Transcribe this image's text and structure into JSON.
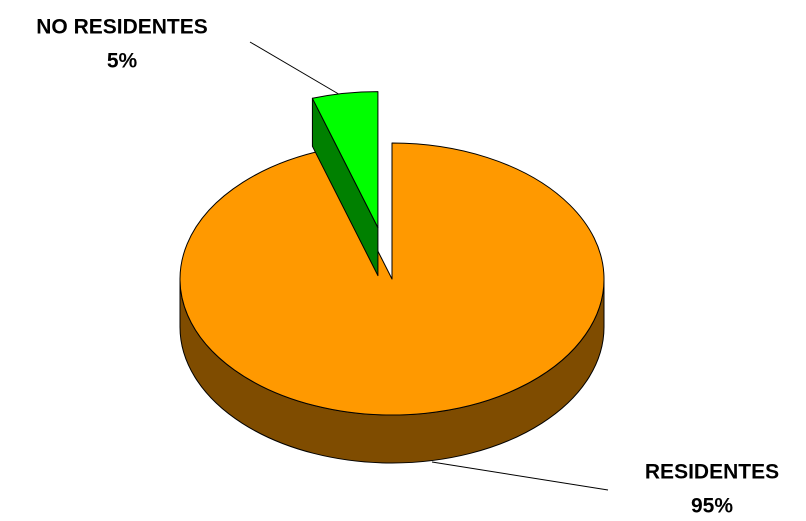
{
  "chart_data": {
    "type": "pie",
    "categories": [
      "RESIDENTES",
      "NO RESIDENTES"
    ],
    "values": [
      95,
      5
    ],
    "value_labels": [
      "95%",
      "5%"
    ],
    "colors": [
      "#ff9900",
      "#00ff00"
    ],
    "side_colors": [
      "#7f4c00",
      "#008000"
    ]
  }
}
